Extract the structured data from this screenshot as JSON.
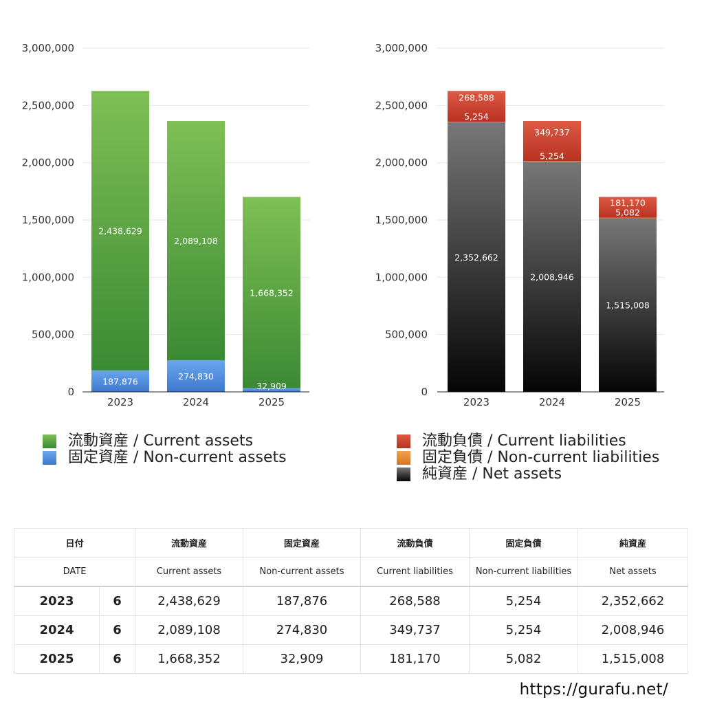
{
  "chart_data": [
    {
      "type": "bar",
      "stacked": true,
      "categories": [
        "2023",
        "2024",
        "2025"
      ],
      "series": [
        {
          "name": "固定資産 / Non-current assets",
          "values": [
            187876,
            274830,
            32909
          ],
          "labels": [
            "187,876",
            "274,830",
            "32,909"
          ],
          "color": "#4a86d8"
        },
        {
          "name": "流動資産 / Current assets",
          "values": [
            2438629,
            2089108,
            1668352
          ],
          "labels": [
            "2,438,629",
            "2,089,108",
            "1,668,352"
          ],
          "color": "#5ea843"
        }
      ],
      "ylim": [
        0,
        3000000
      ],
      "yticks": [
        "0",
        "500,000",
        "1,000,000",
        "1,500,000",
        "2,000,000",
        "2,500,000",
        "3,000,000"
      ],
      "grid": true,
      "legend_position": "bottom"
    },
    {
      "type": "bar",
      "stacked": true,
      "categories": [
        "2023",
        "2024",
        "2025"
      ],
      "series": [
        {
          "name": "純資産 / Net assets",
          "values": [
            2352662,
            2008946,
            1515008
          ],
          "labels": [
            "2,352,662",
            "2,008,946",
            "1,515,008"
          ],
          "color": "#333333"
        },
        {
          "name": "固定負債 / Non-current liabilities",
          "values": [
            5254,
            5254,
            5082
          ],
          "labels": [
            "5,254",
            "5,254",
            "5,082"
          ],
          "color": "#e3852a"
        },
        {
          "name": "流動負債 / Current liabilities",
          "values": [
            268588,
            349737,
            181170
          ],
          "labels": [
            "268,588",
            "349,737",
            "181,170"
          ],
          "color": "#cc4030"
        }
      ],
      "ylim": [
        0,
        3000000
      ],
      "yticks": [
        "0",
        "500,000",
        "1,000,000",
        "1,500,000",
        "2,000,000",
        "2,500,000",
        "3,000,000"
      ],
      "grid": true,
      "legend_position": "bottom"
    }
  ],
  "legend_left": [
    {
      "label": "流動資産 / Current assets",
      "color": "#5ea843"
    },
    {
      "label": "固定資産 / Non-current assets",
      "color": "#4a86d8"
    }
  ],
  "legend_right": [
    {
      "label": "流動負債 / Current liabilities",
      "color": "#cc4030"
    },
    {
      "label": "固定負債 / Non-current liabilities",
      "color": "#e3852a"
    },
    {
      "label": "純資産 / Net assets",
      "color": "#333333"
    }
  ],
  "table": {
    "header_jp": [
      "日付",
      "流動資産",
      "固定資産",
      "流動負債",
      "固定負債",
      "純資産"
    ],
    "header_en": [
      "DATE",
      "Current assets",
      "Non-current assets",
      "Current liabilities",
      "Non-current liabilities",
      "Net assets"
    ],
    "rows": [
      {
        "year": "2023",
        "month": "6",
        "cells": [
          "2,438,629",
          "187,876",
          "268,588",
          "5,254",
          "2,352,662"
        ]
      },
      {
        "year": "2024",
        "month": "6",
        "cells": [
          "2,089,108",
          "274,830",
          "349,737",
          "5,254",
          "2,008,946"
        ]
      },
      {
        "year": "2025",
        "month": "6",
        "cells": [
          "1,668,352",
          "32,909",
          "181,170",
          "5,082",
          "1,515,008"
        ]
      }
    ]
  },
  "site_url": "https://gurafu.net/"
}
